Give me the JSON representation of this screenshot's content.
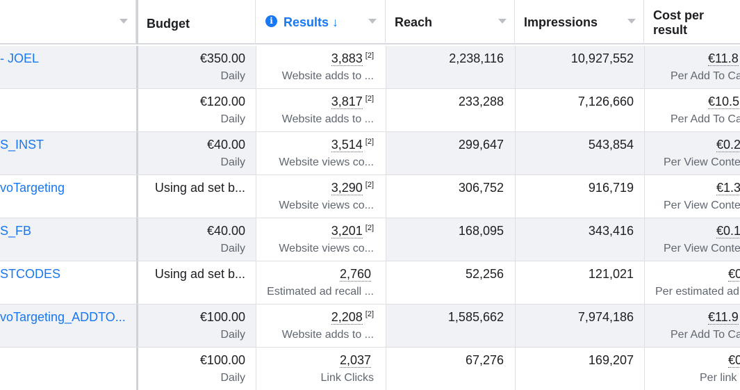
{
  "header": {
    "budget": "Budget",
    "results": "Results",
    "results_sort": "↓",
    "reach": "Reach",
    "impressions": "Impressions",
    "cost_per_result_1": "Cost per",
    "cost_per_result_2": "result"
  },
  "rows": [
    {
      "name": "- JOEL",
      "budget": "€350.00",
      "budget_sub": "Daily",
      "results": "3,883",
      "results_sup": "[2]",
      "results_sub": "Website adds to ...",
      "reach": "2,238,116",
      "impressions": "10,927,552",
      "cost": "€11.8",
      "cost_sub": "Per Add To Ca"
    },
    {
      "name": "",
      "budget": "€120.00",
      "budget_sub": "Daily",
      "results": "3,817",
      "results_sup": "[2]",
      "results_sub": "Website adds to ...",
      "reach": "233,288",
      "impressions": "7,126,660",
      "cost": "€10.5",
      "cost_sub": "Per Add To Ca"
    },
    {
      "name": "S_INST",
      "budget": "€40.00",
      "budget_sub": "Daily",
      "results": "3,514",
      "results_sup": "[2]",
      "results_sub": "Website views co...",
      "reach": "299,647",
      "impressions": "543,854",
      "cost": "€0.2",
      "cost_sub": "Per View Conte"
    },
    {
      "name": "voTargeting",
      "budget": "Using ad set b...",
      "budget_sub": "",
      "results": "3,290",
      "results_sup": "[2]",
      "results_sub": "Website views co...",
      "reach": "306,752",
      "impressions": "916,719",
      "cost": "€1.3",
      "cost_sub": "Per View Conte"
    },
    {
      "name": "S_FB",
      "budget": "€40.00",
      "budget_sub": "Daily",
      "results": "3,201",
      "results_sup": "[2]",
      "results_sub": "Website views co...",
      "reach": "168,095",
      "impressions": "343,416",
      "cost": "€0.1",
      "cost_sub": "Per View Conte"
    },
    {
      "name": "STCODES",
      "budget": "Using ad set b...",
      "budget_sub": "",
      "results": "2,760",
      "results_sup": "",
      "results_sub": "Estimated ad recall ...",
      "reach": "52,256",
      "impressions": "121,021",
      "cost": "€0",
      "cost_sub": "Per estimated ad"
    },
    {
      "name": "voTargeting_ADDTO...",
      "budget": "€100.00",
      "budget_sub": "Daily",
      "results": "2,208",
      "results_sup": "[2]",
      "results_sub": "Website adds to ...",
      "reach": "1,585,662",
      "impressions": "7,974,186",
      "cost": "€11.9",
      "cost_sub": "Per Add To Ca"
    },
    {
      "name": "",
      "budget": "€100.00",
      "budget_sub": "Daily",
      "results": "2,037",
      "results_sup": "",
      "results_sub": "Link Clicks",
      "reach": "67,276",
      "impressions": "169,207",
      "cost": "€0",
      "cost_sub": "Per link"
    }
  ]
}
